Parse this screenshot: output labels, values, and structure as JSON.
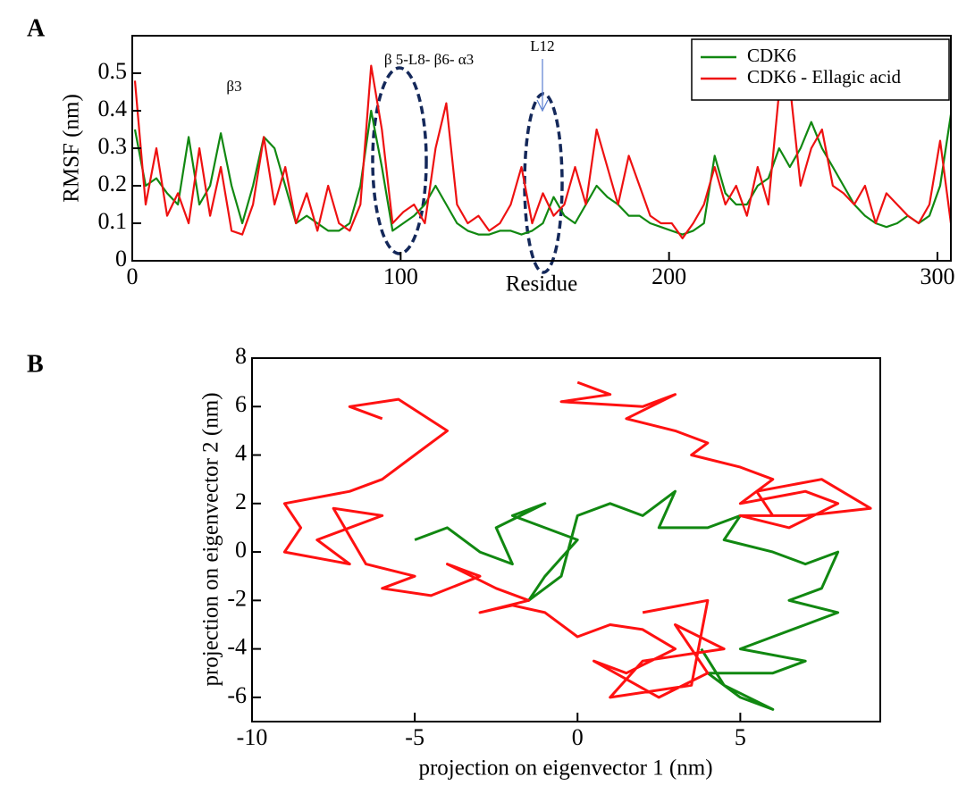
{
  "chart_data": [
    {
      "type": "line",
      "title": "A",
      "xlabel": "Residue",
      "ylabel": "RMSF (nm)",
      "annotations": [
        "β3",
        "β 5-L8- β6- α3",
        "L12"
      ],
      "legend": "upper right",
      "xlim": [
        0,
        305
      ],
      "ylim": [
        0,
        0.6
      ],
      "xticks": [
        0,
        100,
        200,
        300
      ],
      "yticks": [
        0,
        0.1,
        0.2,
        0.3,
        0.4,
        0.5
      ],
      "x": [
        1,
        5,
        9,
        13,
        17,
        21,
        25,
        29,
        33,
        37,
        41,
        45,
        49,
        53,
        57,
        61,
        65,
        69,
        73,
        77,
        81,
        85,
        89,
        93,
        97,
        101,
        105,
        109,
        113,
        117,
        121,
        125,
        129,
        133,
        137,
        141,
        145,
        149,
        153,
        157,
        161,
        165,
        169,
        173,
        177,
        181,
        185,
        189,
        193,
        197,
        201,
        205,
        209,
        213,
        217,
        221,
        225,
        229,
        233,
        237,
        241,
        245,
        249,
        253,
        257,
        261,
        265,
        269,
        273,
        277,
        281,
        285,
        289,
        293,
        297,
        301,
        305
      ],
      "series": [
        {
          "name": "CDK6",
          "color": "#118811",
          "values": [
            0.35,
            0.2,
            0.22,
            0.18,
            0.15,
            0.33,
            0.15,
            0.2,
            0.34,
            0.2,
            0.1,
            0.2,
            0.33,
            0.3,
            0.2,
            0.1,
            0.12,
            0.1,
            0.08,
            0.08,
            0.1,
            0.2,
            0.4,
            0.25,
            0.08,
            0.1,
            0.12,
            0.15,
            0.2,
            0.15,
            0.1,
            0.08,
            0.07,
            0.07,
            0.08,
            0.08,
            0.07,
            0.08,
            0.1,
            0.17,
            0.12,
            0.1,
            0.15,
            0.2,
            0.17,
            0.15,
            0.12,
            0.12,
            0.1,
            0.09,
            0.08,
            0.07,
            0.08,
            0.1,
            0.28,
            0.18,
            0.15,
            0.15,
            0.2,
            0.22,
            0.3,
            0.25,
            0.3,
            0.37,
            0.3,
            0.25,
            0.2,
            0.15,
            0.12,
            0.1,
            0.09,
            0.1,
            0.12,
            0.1,
            0.12,
            0.2,
            0.39
          ]
        },
        {
          "name": "CDK6 - Ellagic acid",
          "color": "#ee1111",
          "values": [
            0.48,
            0.15,
            0.3,
            0.12,
            0.18,
            0.1,
            0.3,
            0.12,
            0.25,
            0.08,
            0.07,
            0.15,
            0.33,
            0.15,
            0.25,
            0.1,
            0.18,
            0.08,
            0.2,
            0.1,
            0.08,
            0.15,
            0.52,
            0.35,
            0.1,
            0.13,
            0.15,
            0.1,
            0.3,
            0.42,
            0.15,
            0.1,
            0.12,
            0.08,
            0.1,
            0.15,
            0.25,
            0.1,
            0.18,
            0.12,
            0.15,
            0.25,
            0.15,
            0.35,
            0.25,
            0.15,
            0.28,
            0.2,
            0.12,
            0.1,
            0.1,
            0.06,
            0.1,
            0.15,
            0.25,
            0.15,
            0.2,
            0.12,
            0.25,
            0.15,
            0.45,
            0.47,
            0.2,
            0.3,
            0.35,
            0.2,
            0.18,
            0.15,
            0.2,
            0.1,
            0.18,
            0.15,
            0.12,
            0.1,
            0.15,
            0.32,
            0.1
          ]
        }
      ]
    },
    {
      "type": "line",
      "title": "B",
      "xlabel": "projection on eigenvector 1 (nm)",
      "ylabel": "projection on eigenvector 2 (nm)",
      "xlim": [
        -10,
        9.3
      ],
      "ylim": [
        -7,
        8
      ],
      "xticks": [
        -10,
        -5,
        0,
        5
      ],
      "yticks": [
        -6,
        -4,
        -2,
        0,
        2,
        4,
        6,
        8
      ],
      "series": [
        {
          "color": "#118811",
          "x": [
            -5,
            -4,
            -3,
            -2,
            -2.5,
            -1,
            -2,
            0,
            -1,
            -1.5,
            -0.5,
            0,
            1,
            2,
            3,
            2.5,
            4,
            5,
            4.5,
            6,
            7,
            8,
            7.5,
            6.5,
            8,
            7,
            6,
            5,
            7,
            6,
            4,
            5,
            6,
            4.5,
            3.8
          ],
          "values": [
            0.5,
            1,
            0,
            -0.5,
            1,
            2,
            1.5,
            0.5,
            -1,
            -2,
            -1,
            1.5,
            2,
            1.5,
            2.5,
            1,
            1,
            1.5,
            0.5,
            0,
            -0.5,
            0,
            -1.5,
            -2,
            -2.5,
            -3,
            -3.5,
            -4,
            -4.5,
            -5,
            -5,
            -6,
            -6.5,
            -5.5,
            -4
          ]
        },
        {
          "color": "#ff1111",
          "x": [
            -6,
            -7,
            -5.5,
            -4,
            -5,
            -6,
            -7,
            -9,
            -8.5,
            -9,
            -7,
            -8,
            -6,
            -7.5,
            -6.5,
            -5,
            -6,
            -4.5,
            -3,
            -4,
            -2.5,
            -1.5,
            -3,
            -2,
            -1,
            0,
            1,
            2,
            3,
            1.5,
            0.5,
            2.5,
            4,
            3,
            4.5,
            2,
            1,
            3.5,
            4,
            2,
            null,
            0,
            1,
            -0.5,
            2,
            3,
            1.5,
            3,
            4,
            3.5,
            5,
            6,
            5,
            7,
            8,
            6.5,
            5,
            7,
            9,
            7.5,
            5.5,
            6
          ],
          "values": [
            5.5,
            6,
            6.3,
            5,
            4,
            3,
            2.5,
            2,
            1,
            0,
            -0.5,
            0.5,
            1.5,
            1.8,
            -0.5,
            -1,
            -1.5,
            -1.8,
            -1,
            -0.5,
            -1.5,
            -2,
            -2.5,
            -2.2,
            -2.5,
            -3.5,
            -3,
            -3.2,
            -4,
            -5,
            -4.5,
            -6,
            -5,
            -3,
            -4,
            -4.5,
            -6,
            -5.5,
            -2,
            -2.5,
            null,
            7,
            6.5,
            6.2,
            6,
            6.5,
            5.5,
            5,
            4.5,
            4,
            3.5,
            3,
            2,
            2.5,
            2,
            1,
            1.5,
            1.5,
            1.8,
            3,
            2.5,
            1.5
          ]
        }
      ]
    }
  ]
}
